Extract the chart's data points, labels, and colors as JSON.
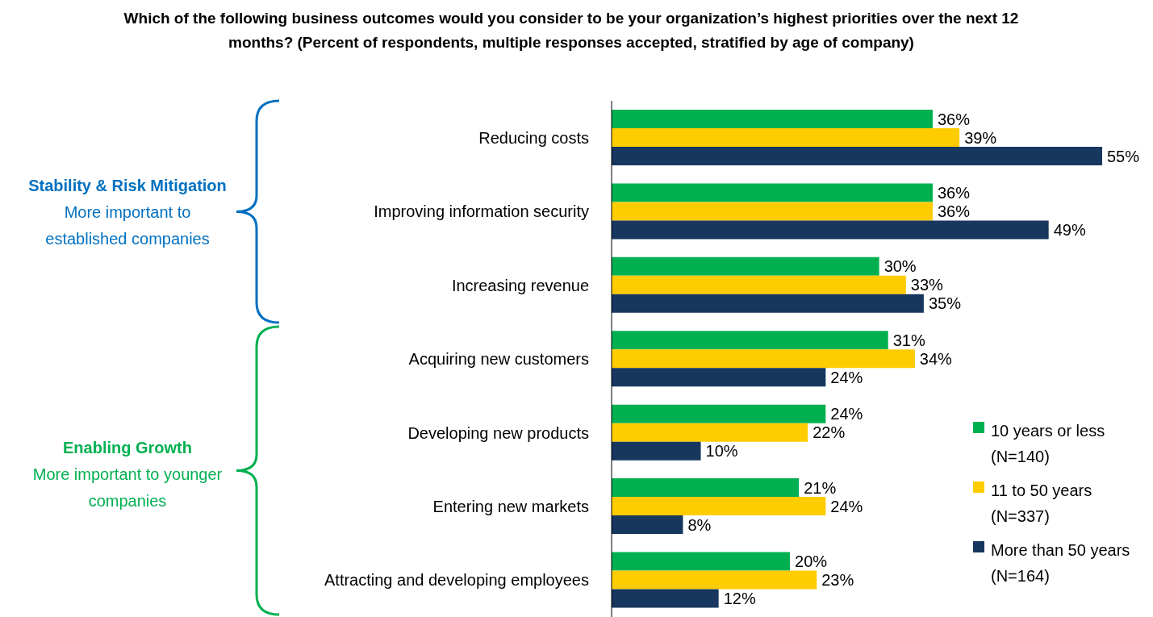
{
  "chart_data": {
    "type": "bar",
    "orientation": "horizontal",
    "title": "Which of the following business outcomes would you consider to be your organization’s highest priorities over the next 12 months? (Percent of respondents, multiple responses accepted, stratified by age of company)",
    "categories": [
      "Reducing costs",
      "Improving information security",
      "Increasing revenue",
      "Acquiring new customers",
      "Developing new products",
      "Entering new markets",
      "Attracting and developing employees"
    ],
    "series": [
      {
        "name": "10 years or less (N=140)",
        "color": "#00b050",
        "values": [
          36,
          36,
          30,
          31,
          24,
          21,
          20
        ],
        "value_labels": [
          "36%",
          "36%",
          "30%",
          "31%",
          "24%",
          "21%",
          "20%"
        ]
      },
      {
        "name": "11 to 50 years (N=337)",
        "color": "#ffcc00",
        "values": [
          39,
          36,
          33,
          34,
          22,
          24,
          23
        ],
        "value_labels": [
          "39%",
          "36%",
          "33%",
          "34%",
          "22%",
          "24%",
          "23%"
        ]
      },
      {
        "name": "More than 50 years (N=164)",
        "color": "#17375e",
        "values": [
          55,
          49,
          35,
          24,
          10,
          8,
          12
        ],
        "value_labels": [
          "55%",
          "49%",
          "35%",
          "24%",
          "10%",
          "8%",
          "12%"
        ]
      }
    ],
    "annotations": [
      "Stability & Risk Mitigation",
      "More important to established companies",
      "Enabling Growth",
      "More important to younger companies"
    ],
    "legend": "right",
    "tick_labels": "y"
  }
}
